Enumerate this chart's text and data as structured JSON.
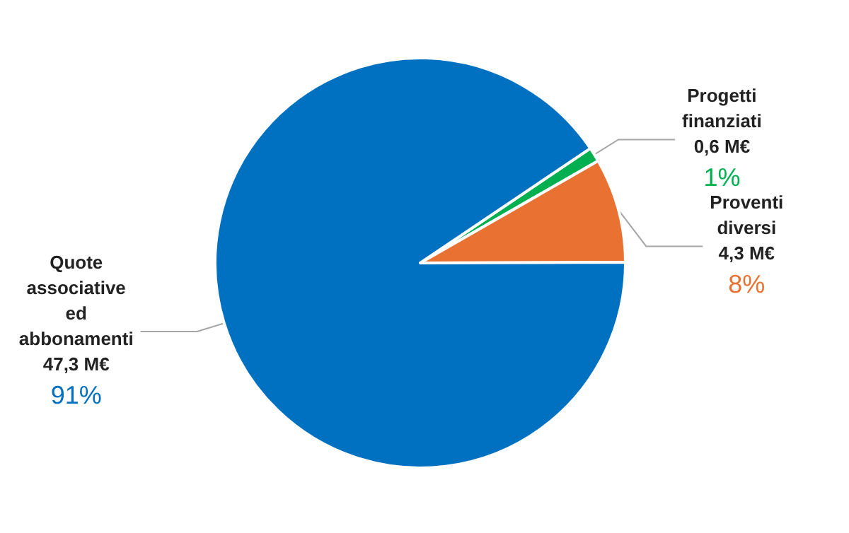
{
  "chart_data": {
    "type": "pie",
    "categories": [
      "Progetti finanziati",
      "Proventi diversi",
      "Quote associative ed abbonamenti"
    ],
    "values": [
      0.6,
      4.3,
      47.3
    ],
    "colors": [
      "#00b050",
      "#e97132",
      "#0070c0"
    ],
    "value_labels": [
      "0,6 M€\n1%",
      "4,3 M€\n8%",
      "47,3 M€\n91%"
    ],
    "legend": false
  }
}
